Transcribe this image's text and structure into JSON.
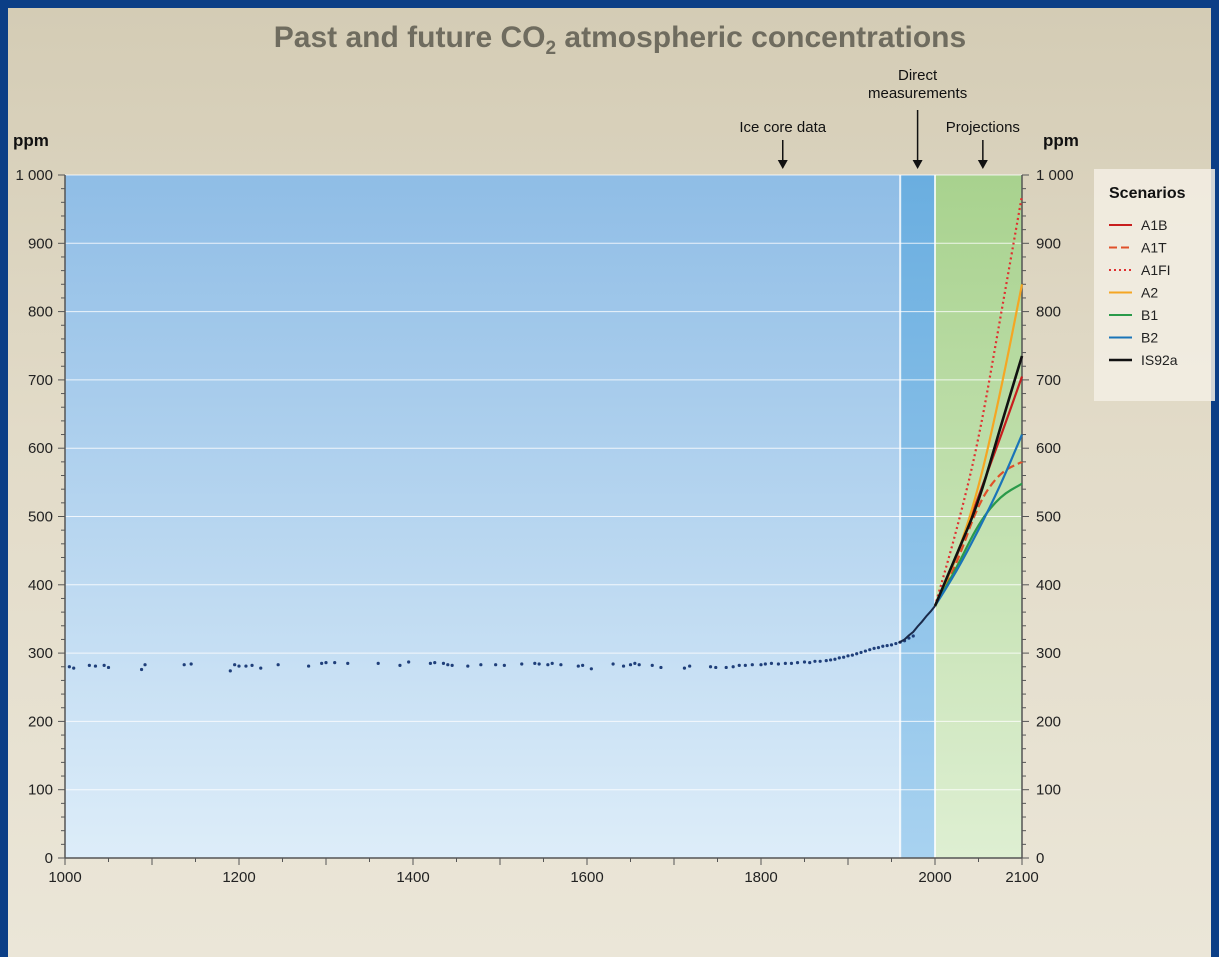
{
  "chart_data": {
    "type": "line",
    "title_main": "Past and future CO",
    "title_sub": "2",
    "title_rest": " atmospheric concentrations",
    "ylabel_left": "ppm",
    "ylabel_right": "ppm",
    "xlim": [
      1000,
      2100
    ],
    "ylim": [
      0,
      1000
    ],
    "x_ticks": [
      1000,
      1200,
      1400,
      1600,
      1800,
      2000,
      2100
    ],
    "x_tick_labels": [
      "1000",
      "1200",
      "1400",
      "1600",
      "1800",
      "2000",
      "2100"
    ],
    "y_ticks": [
      0,
      100,
      200,
      300,
      400,
      500,
      600,
      700,
      800,
      900,
      1000
    ],
    "y_tick_labels_left": [
      "0",
      "100",
      "200",
      "300",
      "400",
      "500",
      "600",
      "700",
      "800",
      "900",
      "1 000"
    ],
    "y_tick_labels_right": [
      "0",
      "100",
      "200",
      "300",
      "400",
      "500",
      "600",
      "700",
      "800",
      "900",
      "1 000"
    ],
    "grid": true,
    "regions": [
      {
        "name": "Ice core data",
        "from": 1000,
        "to": 1960,
        "color": "#8fbde6",
        "arrow_x": 1825
      },
      {
        "name": "Direct measurements",
        "lines": [
          "Direct",
          "measurements"
        ],
        "from": 1960,
        "to": 2000,
        "color": "#6aaee0",
        "arrow_x": 1980
      },
      {
        "name": "Projections",
        "from": 2000,
        "to": 2100,
        "color": "#a8d28e",
        "arrow_x": 2055
      }
    ],
    "ice_core_points": [
      [
        1005,
        280
      ],
      [
        1010,
        278
      ],
      [
        1028,
        282
      ],
      [
        1035,
        281
      ],
      [
        1045,
        282
      ],
      [
        1050,
        279
      ],
      [
        1088,
        276
      ],
      [
        1092,
        283
      ],
      [
        1137,
        283
      ],
      [
        1145,
        284
      ],
      [
        1190,
        274
      ],
      [
        1195,
        283
      ],
      [
        1200,
        281
      ],
      [
        1208,
        281
      ],
      [
        1215,
        282
      ],
      [
        1225,
        278
      ],
      [
        1245,
        283
      ],
      [
        1280,
        281
      ],
      [
        1295,
        285
      ],
      [
        1300,
        286
      ],
      [
        1310,
        286
      ],
      [
        1325,
        285
      ],
      [
        1360,
        285
      ],
      [
        1385,
        282
      ],
      [
        1395,
        287
      ],
      [
        1420,
        285
      ],
      [
        1425,
        286
      ],
      [
        1435,
        285
      ],
      [
        1440,
        283
      ],
      [
        1445,
        282
      ],
      [
        1463,
        281
      ],
      [
        1478,
        283
      ],
      [
        1495,
        283
      ],
      [
        1505,
        282
      ],
      [
        1525,
        284
      ],
      [
        1540,
        285
      ],
      [
        1545,
        284
      ],
      [
        1555,
        283
      ],
      [
        1560,
        285
      ],
      [
        1570,
        283
      ],
      [
        1590,
        281
      ],
      [
        1595,
        282
      ],
      [
        1605,
        277
      ],
      [
        1630,
        284
      ],
      [
        1642,
        281
      ],
      [
        1650,
        283
      ],
      [
        1655,
        285
      ],
      [
        1660,
        283
      ],
      [
        1675,
        282
      ],
      [
        1685,
        279
      ],
      [
        1712,
        278
      ],
      [
        1718,
        281
      ],
      [
        1742,
        280
      ],
      [
        1748,
        279
      ],
      [
        1760,
        279
      ],
      [
        1768,
        280
      ],
      [
        1775,
        282
      ],
      [
        1782,
        282
      ],
      [
        1790,
        283
      ],
      [
        1800,
        283
      ],
      [
        1805,
        284
      ],
      [
        1812,
        285
      ],
      [
        1820,
        284
      ],
      [
        1828,
        285
      ],
      [
        1835,
        285
      ],
      [
        1842,
        286
      ],
      [
        1850,
        287
      ],
      [
        1856,
        286
      ],
      [
        1862,
        288
      ],
      [
        1868,
        288
      ],
      [
        1875,
        289
      ],
      [
        1880,
        290
      ],
      [
        1885,
        291
      ],
      [
        1890,
        293
      ],
      [
        1895,
        294
      ],
      [
        1900,
        296
      ],
      [
        1905,
        297
      ],
      [
        1910,
        299
      ],
      [
        1915,
        301
      ],
      [
        1920,
        303
      ],
      [
        1925,
        305
      ],
      [
        1930,
        307
      ],
      [
        1935,
        308
      ],
      [
        1940,
        310
      ],
      [
        1945,
        311
      ],
      [
        1950,
        312
      ],
      [
        1955,
        314
      ],
      [
        1960,
        316
      ],
      [
        1965,
        318
      ],
      [
        1970,
        322
      ],
      [
        1975,
        325
      ]
    ],
    "direct_measurements": {
      "x": [
        1958,
        1965,
        1970,
        1975,
        1980,
        1985,
        1990,
        1995,
        2000
      ],
      "y": [
        315,
        320,
        326,
        331,
        339,
        346,
        354,
        361,
        369
      ]
    },
    "legend_title": "Scenarios",
    "series": [
      {
        "name": "A1B",
        "color": "#c81e1e",
        "dash": "solid",
        "x": [
          2000,
          2025,
          2050,
          2075,
          2100
        ],
        "y": [
          369,
          440,
          530,
          615,
          705
        ]
      },
      {
        "name": "A1T",
        "color": "#e0502a",
        "dash": "dashed",
        "x": [
          2000,
          2025,
          2050,
          2075,
          2100
        ],
        "y": [
          369,
          430,
          520,
          565,
          580
        ]
      },
      {
        "name": "A1FI",
        "color": "#e03030",
        "dash": "dotted",
        "x": [
          2000,
          2025,
          2050,
          2075,
          2100
        ],
        "y": [
          369,
          480,
          610,
          790,
          970
        ]
      },
      {
        "name": "A2",
        "color": "#f5a623",
        "dash": "solid",
        "x": [
          2000,
          2025,
          2050,
          2075,
          2100
        ],
        "y": [
          369,
          440,
          540,
          680,
          840
        ]
      },
      {
        "name": "B1",
        "color": "#2a9a4a",
        "dash": "solid",
        "x": [
          2000,
          2025,
          2050,
          2075,
          2100
        ],
        "y": [
          369,
          425,
          490,
          530,
          548
        ]
      },
      {
        "name": "B2",
        "color": "#1a74b8",
        "dash": "solid",
        "x": [
          2000,
          2025,
          2050,
          2075,
          2100
        ],
        "y": [
          369,
          420,
          480,
          545,
          620
        ]
      },
      {
        "name": "IS92a",
        "color": "#111111",
        "dash": "solid",
        "x": [
          2000,
          2025,
          2050,
          2075,
          2100
        ],
        "y": [
          369,
          445,
          520,
          630,
          735
        ]
      }
    ]
  }
}
